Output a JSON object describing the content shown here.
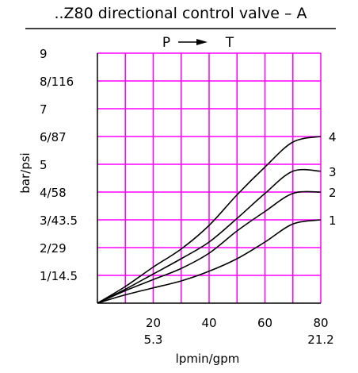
{
  "chart_data": {
    "type": "line",
    "title": "..Z80 directional control valve – A",
    "direction": {
      "from": "P",
      "to": "T",
      "arrow": "right-arrow"
    },
    "xlabel": "lpmin/gpm",
    "ylabel": "bar/psi",
    "xlim": [
      0,
      80
    ],
    "ylim": [
      0,
      9
    ],
    "x_ticks": [
      {
        "value": 20,
        "label": "20",
        "sub": "5.3"
      },
      {
        "value": 40,
        "label": "40",
        "sub": ""
      },
      {
        "value": 60,
        "label": "60",
        "sub": ""
      },
      {
        "value": 80,
        "label": "80",
        "sub": "21.2"
      }
    ],
    "y_ticks": [
      {
        "value": 1,
        "label": "1/14.5"
      },
      {
        "value": 2,
        "label": "2/29"
      },
      {
        "value": 3,
        "label": "3/43.5"
      },
      {
        "value": 4,
        "label": "4/58"
      },
      {
        "value": 5,
        "label": "5"
      },
      {
        "value": 6,
        "label": "6/87"
      },
      {
        "value": 7,
        "label": "7"
      },
      {
        "value": 8,
        "label": "8/116"
      },
      {
        "value": 9,
        "label": "9"
      }
    ],
    "grid": true,
    "grid_color": "#ff00ff",
    "line_color": "#000000",
    "series": [
      {
        "name": "1",
        "x": [
          0,
          10,
          20,
          30,
          40,
          50,
          60,
          70,
          80
        ],
        "y": [
          0,
          0.3,
          0.55,
          0.8,
          1.15,
          1.6,
          2.2,
          2.85,
          3.0
        ]
      },
      {
        "name": "2",
        "x": [
          0,
          10,
          20,
          30,
          40,
          50,
          60,
          70,
          80
        ],
        "y": [
          0,
          0.45,
          0.85,
          1.25,
          1.8,
          2.6,
          3.3,
          3.95,
          4.0
        ]
      },
      {
        "name": "3",
        "x": [
          0,
          10,
          20,
          30,
          40,
          50,
          60,
          70,
          80
        ],
        "y": [
          0,
          0.5,
          1.05,
          1.6,
          2.2,
          3.05,
          3.95,
          4.75,
          4.75
        ]
      },
      {
        "name": "4",
        "x": [
          0,
          10,
          20,
          30,
          40,
          50,
          60,
          70,
          80
        ],
        "y": [
          0,
          0.6,
          1.3,
          1.95,
          2.8,
          3.9,
          4.9,
          5.8,
          6.0
        ]
      }
    ]
  }
}
